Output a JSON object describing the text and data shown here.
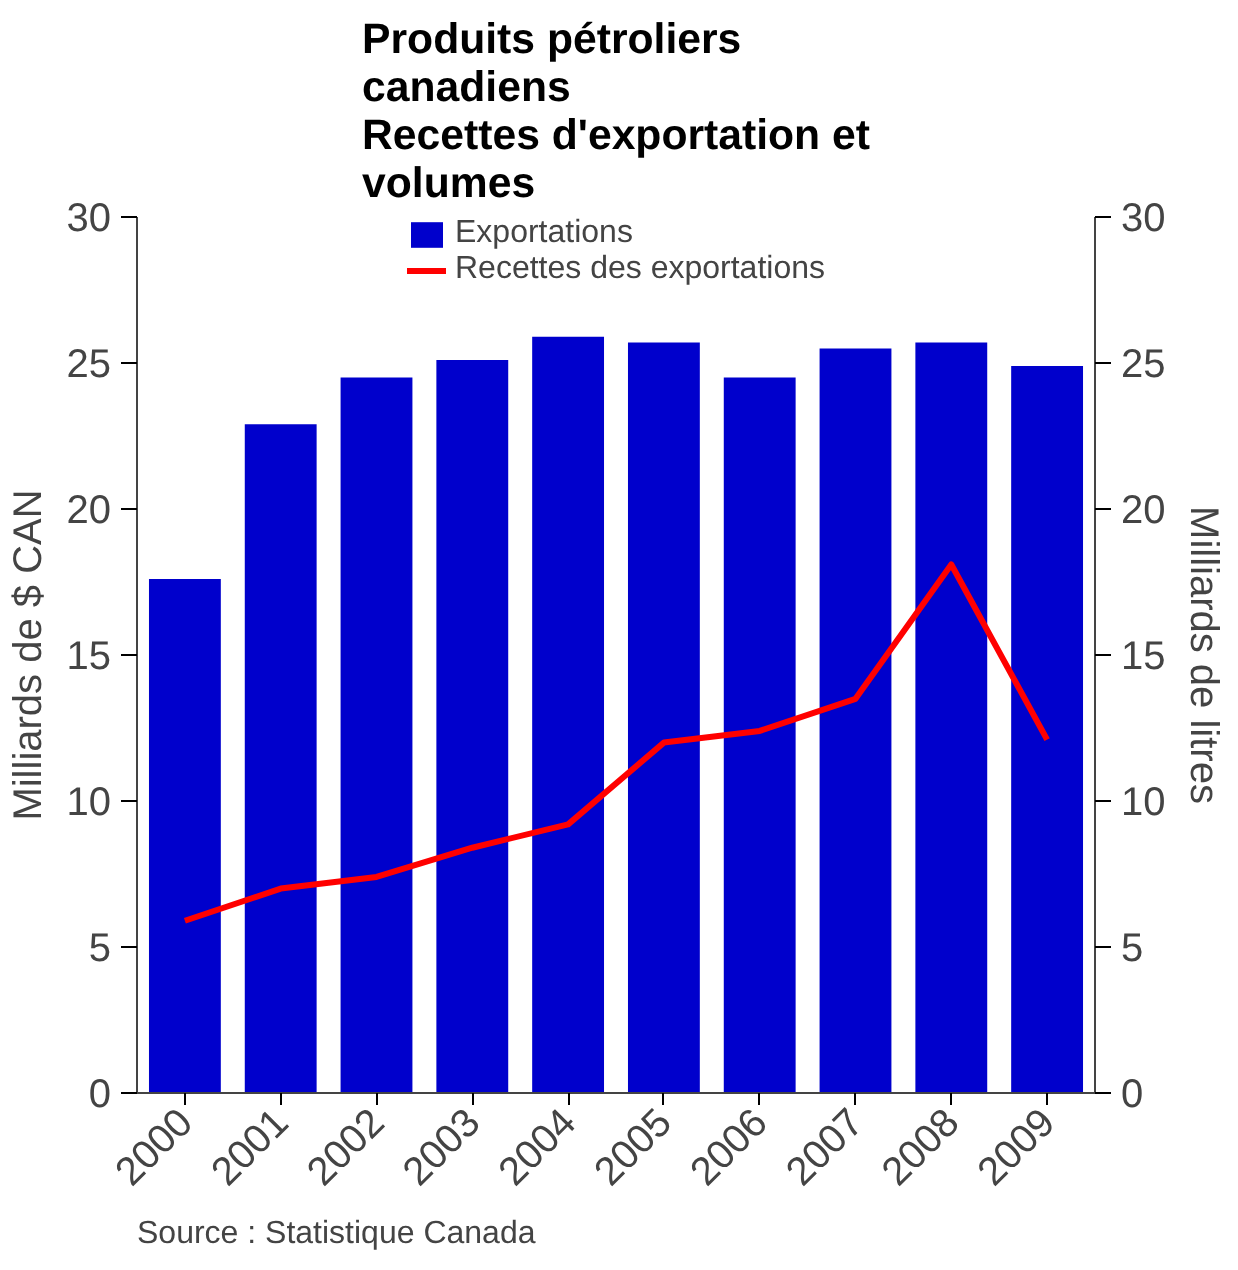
{
  "chart_data": {
    "type": "bar",
    "title": "Produits pétroliers canadiens\nRecettes d'exportation et volumes",
    "ylabel": "Milliards de $ CAN",
    "y2label": "Milliards de litres",
    "categories": [
      "2000",
      "2001",
      "2002",
      "2003",
      "2004",
      "2005",
      "2006",
      "2007",
      "2008",
      "2009"
    ],
    "series": [
      {
        "name": "Exportations",
        "color": "#0000cc",
        "values": [
          17.6,
          22.9,
          24.5,
          25.1,
          25.9,
          25.7,
          24.5,
          25.5,
          25.7,
          24.9
        ]
      },
      {
        "name": "Recettes des exportations",
        "type": "line",
        "color": "#ff0000",
        "values": [
          5.9,
          7.0,
          7.4,
          8.4,
          9.2,
          12.0,
          12.4,
          13.5,
          18.1,
          12.1
        ]
      }
    ],
    "ylim": [
      0,
      30
    ],
    "yticks": [
      0,
      5,
      10,
      15,
      20,
      25,
      30
    ],
    "y2lim": [
      0,
      30
    ],
    "y2ticks": [
      0,
      5,
      10,
      15,
      20,
      25,
      30
    ],
    "legend": "top",
    "grid": false,
    "annotations": [
      "Source : Statistique Canada"
    ]
  }
}
